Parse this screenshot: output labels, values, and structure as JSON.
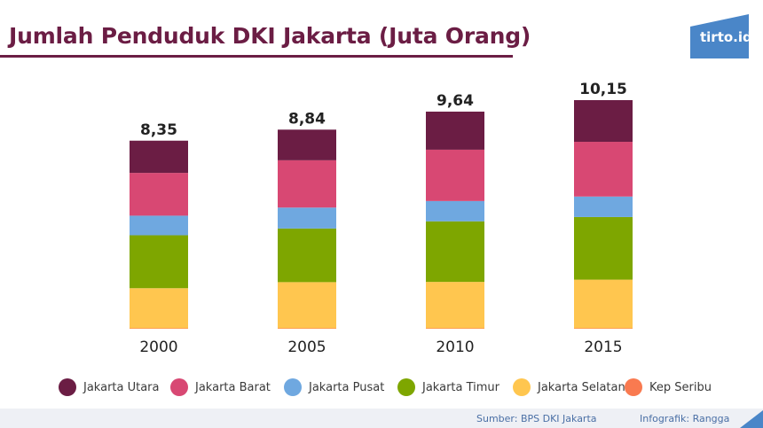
{
  "header": {
    "title": "Jumlah Penduduk DKI Jakarta (Juta Orang)",
    "logo_text": "tirto.id"
  },
  "footer": {
    "source": "Sumber: BPS DKI Jakarta",
    "credit": "Infografik: Rangga"
  },
  "colors": {
    "brand": "#6b1d44",
    "Jakarta Utara": "#6b1d44",
    "Jakarta Barat": "#d84873",
    "Jakarta Pusat": "#6fa8e0",
    "Jakarta Timur": "#7ea600",
    "Jakarta Selatan": "#ffc64f",
    "Kep Seribu": "#f97a50",
    "logo": "#4a86c8"
  },
  "chart_data": {
    "type": "bar",
    "stacked": true,
    "title": "Jumlah Penduduk DKI Jakarta (Juta Orang)",
    "categories": [
      "2000",
      "2005",
      "2010",
      "2015"
    ],
    "totals": [
      "8,35",
      "8,84",
      "9,64",
      "10,15"
    ],
    "series": [
      {
        "name": "Kep Seribu",
        "values": [
          0.02,
          0.02,
          0.02,
          0.02
        ]
      },
      {
        "name": "Jakarta Selatan",
        "values": [
          1.78,
          2.05,
          2.06,
          2.16
        ]
      },
      {
        "name": "Jakarta Timur",
        "values": [
          2.35,
          2.38,
          2.69,
          2.78
        ]
      },
      {
        "name": "Jakarta Pusat",
        "values": [
          0.87,
          0.93,
          0.9,
          0.91
        ]
      },
      {
        "name": "Jakarta Barat",
        "values": [
          1.9,
          2.1,
          2.28,
          2.43
        ]
      },
      {
        "name": "Jakarta Utara",
        "values": [
          1.43,
          1.36,
          1.69,
          1.85
        ]
      }
    ],
    "legend": [
      "Jakarta Utara",
      "Jakarta Barat",
      "Jakarta Pusat",
      "Jakarta Timur",
      "Jakarta Selatan",
      "Kep Seribu"
    ],
    "ylim": [
      0,
      10.15
    ],
    "grid": false,
    "legend_position": "bottom"
  }
}
